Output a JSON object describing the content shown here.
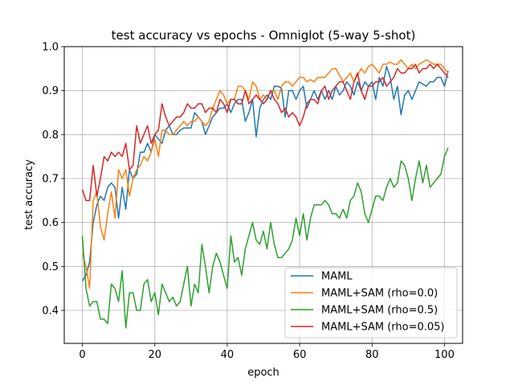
{
  "chart_data": {
    "type": "line",
    "title": "test accuracy vs epochs - Omniglot (5-way 5-shot)",
    "xlabel": "epoch",
    "ylabel": "test accuracy",
    "xlim": [
      -5,
      105
    ],
    "ylim": [
      0.325,
      1.0
    ],
    "xticks": [
      0,
      20,
      40,
      60,
      80,
      100
    ],
    "yticks": [
      0.4,
      0.5,
      0.6,
      0.7,
      0.8,
      0.9,
      1.0
    ],
    "xtick_labels": [
      "0",
      "20",
      "40",
      "60",
      "80",
      "100"
    ],
    "ytick_labels": [
      "0.4",
      "0.5",
      "0.6",
      "0.7",
      "0.8",
      "0.9",
      "1.0"
    ],
    "grid": true,
    "legend_position": "lower-right",
    "series": [
      {
        "name": "MAML",
        "color": "#1f77b4",
        "values": [
          0.467,
          0.48,
          0.51,
          0.6,
          0.64,
          0.66,
          0.65,
          0.68,
          0.69,
          0.68,
          0.61,
          0.68,
          0.63,
          0.72,
          0.7,
          0.71,
          0.76,
          0.76,
          0.78,
          0.76,
          0.8,
          0.79,
          0.78,
          0.81,
          0.82,
          0.8,
          0.8,
          0.81,
          0.815,
          0.815,
          0.815,
          0.85,
          0.84,
          0.83,
          0.8,
          0.82,
          0.84,
          0.85,
          0.86,
          0.86,
          0.87,
          0.85,
          0.87,
          0.88,
          0.88,
          0.83,
          0.85,
          0.88,
          0.795,
          0.86,
          0.88,
          0.89,
          0.88,
          0.91,
          0.91,
          0.905,
          0.84,
          0.9,
          0.9,
          0.88,
          0.9,
          0.91,
          0.86,
          0.88,
          0.9,
          0.88,
          0.9,
          0.88,
          0.9,
          0.88,
          0.91,
          0.89,
          0.9,
          0.92,
          0.91,
          0.89,
          0.92,
          0.9,
          0.92,
          0.91,
          0.92,
          0.88,
          0.93,
          0.91,
          0.955,
          0.93,
          0.88,
          0.91,
          0.845,
          0.89,
          0.9,
          0.88,
          0.9,
          0.92,
          0.915,
          0.91,
          0.92,
          0.92,
          0.93,
          0.93,
          0.91,
          0.945
        ]
      },
      {
        "name": "MAML+SAM (rho=0.0)",
        "color": "#ff7f0e",
        "values": [
          0.53,
          0.5,
          0.45,
          0.65,
          0.67,
          0.59,
          0.56,
          0.62,
          0.67,
          0.61,
          0.72,
          0.7,
          0.72,
          0.66,
          0.7,
          0.72,
          0.73,
          0.75,
          0.74,
          0.76,
          0.79,
          0.75,
          0.81,
          0.81,
          0.8,
          0.8,
          0.81,
          0.82,
          0.83,
          0.82,
          0.83,
          0.83,
          0.84,
          0.83,
          0.82,
          0.83,
          0.86,
          0.88,
          0.9,
          0.89,
          0.87,
          0.88,
          0.88,
          0.91,
          0.91,
          0.9,
          0.88,
          0.92,
          0.91,
          0.88,
          0.89,
          0.88,
          0.9,
          0.9,
          0.88,
          0.91,
          0.92,
          0.92,
          0.91,
          0.92,
          0.93,
          0.93,
          0.92,
          0.925,
          0.92,
          0.93,
          0.93,
          0.93,
          0.94,
          0.95,
          0.95,
          0.935,
          0.92,
          0.93,
          0.94,
          0.92,
          0.935,
          0.95,
          0.94,
          0.955,
          0.96,
          0.95,
          0.94,
          0.96,
          0.96,
          0.965,
          0.96,
          0.96,
          0.97,
          0.96,
          0.95,
          0.96,
          0.95,
          0.96,
          0.965,
          0.97,
          0.965,
          0.96,
          0.96,
          0.96,
          0.95,
          0.94
        ]
      },
      {
        "name": "MAML+SAM (rho=0.5)",
        "color": "#2ca02c",
        "values": [
          0.57,
          0.45,
          0.41,
          0.42,
          0.42,
          0.38,
          0.38,
          0.37,
          0.46,
          0.45,
          0.42,
          0.49,
          0.36,
          0.44,
          0.44,
          0.4,
          0.4,
          0.46,
          0.47,
          0.42,
          0.44,
          0.39,
          0.46,
          0.44,
          0.42,
          0.43,
          0.41,
          0.42,
          0.46,
          0.5,
          0.41,
          0.46,
          0.44,
          0.55,
          0.5,
          0.44,
          0.5,
          0.53,
          0.51,
          0.48,
          0.45,
          0.57,
          0.51,
          0.52,
          0.48,
          0.54,
          0.57,
          0.6,
          0.56,
          0.55,
          0.58,
          0.54,
          0.6,
          0.55,
          0.52,
          0.52,
          0.53,
          0.54,
          0.56,
          0.61,
          0.57,
          0.62,
          0.56,
          0.61,
          0.64,
          0.64,
          0.64,
          0.65,
          0.64,
          0.62,
          0.62,
          0.61,
          0.63,
          0.61,
          0.65,
          0.66,
          0.69,
          0.67,
          0.62,
          0.6,
          0.63,
          0.66,
          0.66,
          0.65,
          0.68,
          0.7,
          0.68,
          0.69,
          0.74,
          0.73,
          0.7,
          0.65,
          0.7,
          0.74,
          0.69,
          0.73,
          0.68,
          0.69,
          0.7,
          0.71,
          0.75,
          0.77
        ]
      },
      {
        "name": "MAML+SAM (rho=0.05)",
        "color": "#d62728",
        "values": [
          0.675,
          0.65,
          0.65,
          0.73,
          0.66,
          0.7,
          0.75,
          0.74,
          0.76,
          0.75,
          0.76,
          0.75,
          0.78,
          0.72,
          0.73,
          0.82,
          0.78,
          0.8,
          0.82,
          0.78,
          0.8,
          0.81,
          0.87,
          0.84,
          0.82,
          0.83,
          0.84,
          0.84,
          0.85,
          0.87,
          0.86,
          0.86,
          0.87,
          0.87,
          0.85,
          0.86,
          0.86,
          0.85,
          0.88,
          0.87,
          0.85,
          0.88,
          0.88,
          0.87,
          0.87,
          0.9,
          0.87,
          0.88,
          0.89,
          0.88,
          0.87,
          0.88,
          0.9,
          0.88,
          0.87,
          0.85,
          0.86,
          0.84,
          0.85,
          0.84,
          0.82,
          0.84,
          0.87,
          0.88,
          0.88,
          0.87,
          0.9,
          0.91,
          0.88,
          0.9,
          0.91,
          0.92,
          0.92,
          0.9,
          0.88,
          0.92,
          0.94,
          0.9,
          0.88,
          0.91,
          0.91,
          0.92,
          0.92,
          0.93,
          0.91,
          0.92,
          0.93,
          0.95,
          0.94,
          0.94,
          0.95,
          0.95,
          0.96,
          0.94,
          0.95,
          0.95,
          0.96,
          0.95,
          0.96,
          0.95,
          0.94,
          0.93
        ]
      }
    ]
  }
}
